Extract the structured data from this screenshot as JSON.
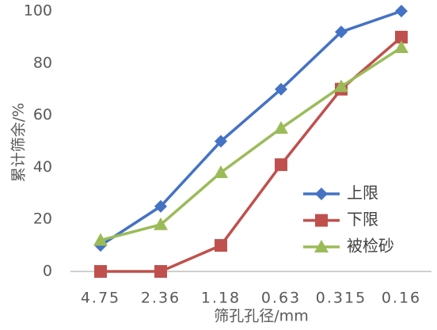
{
  "chart_data": {
    "type": "line",
    "x_label": "筛孔孔径/mm",
    "y_label": "累计筛余/%",
    "categories": [
      "4.75",
      "2.36",
      "1.18",
      "0.63",
      "0.315",
      "0.16"
    ],
    "series": [
      {
        "name": "上限",
        "color": "#4472c4",
        "marker": "diamond",
        "values": [
          10,
          25,
          50,
          70,
          92,
          100
        ]
      },
      {
        "name": "下限",
        "color": "#c0504d",
        "marker": "square",
        "values": [
          0,
          0,
          10,
          41,
          70,
          90
        ]
      },
      {
        "name": "被检砂",
        "color": "#9bbb59",
        "marker": "triangle",
        "values": [
          12,
          18,
          38,
          55,
          71,
          86
        ]
      }
    ],
    "ylim": [
      0,
      100
    ],
    "yticks": [
      0,
      20,
      40,
      60,
      80,
      100
    ],
    "grid": false,
    "legend": "right"
  }
}
